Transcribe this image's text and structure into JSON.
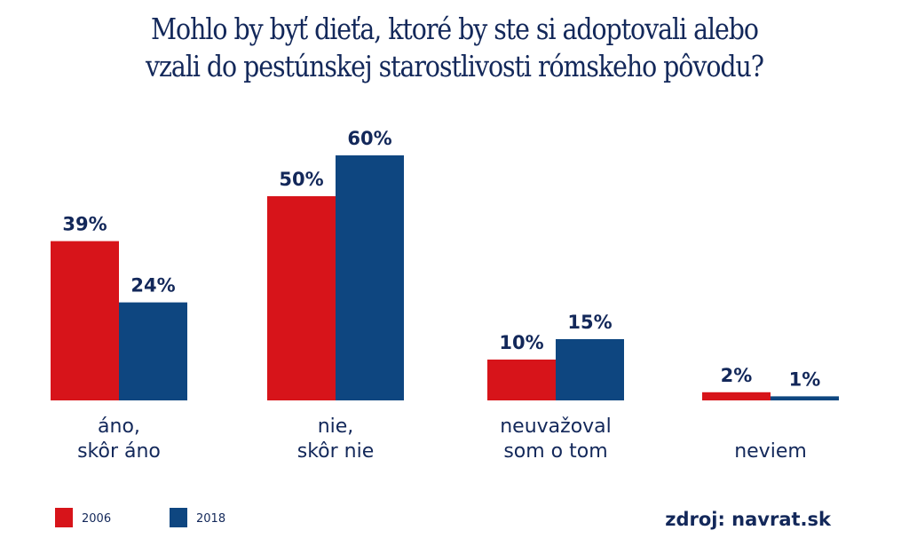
{
  "chart_data": {
    "type": "bar",
    "title_lines": [
      "Mohlo by byť dieťa, ktoré by ste si adoptovali alebo",
      "vzali do pestúnskej starostlivosti rómskeho pôvodu?"
    ],
    "categories": [
      [
        "áno,",
        "skôr áno"
      ],
      [
        "nie,",
        "skôr nie"
      ],
      [
        "neuvažoval",
        "som o tom"
      ],
      [
        "neviem"
      ]
    ],
    "series": [
      {
        "name": "2006",
        "color": "#d7141a",
        "values": [
          39,
          50,
          10,
          2
        ],
        "labels": [
          "39%",
          "50%",
          "10%",
          "2%"
        ]
      },
      {
        "name": "2018",
        "color": "#0e4680",
        "values": [
          24,
          60,
          15,
          1
        ],
        "labels": [
          "24%",
          "60%",
          "15%",
          "1%"
        ]
      }
    ],
    "ylim": [
      0,
      60
    ],
    "grid": false,
    "legend_placement": "bottom-left",
    "source": "zdroj: navrat.sk"
  }
}
